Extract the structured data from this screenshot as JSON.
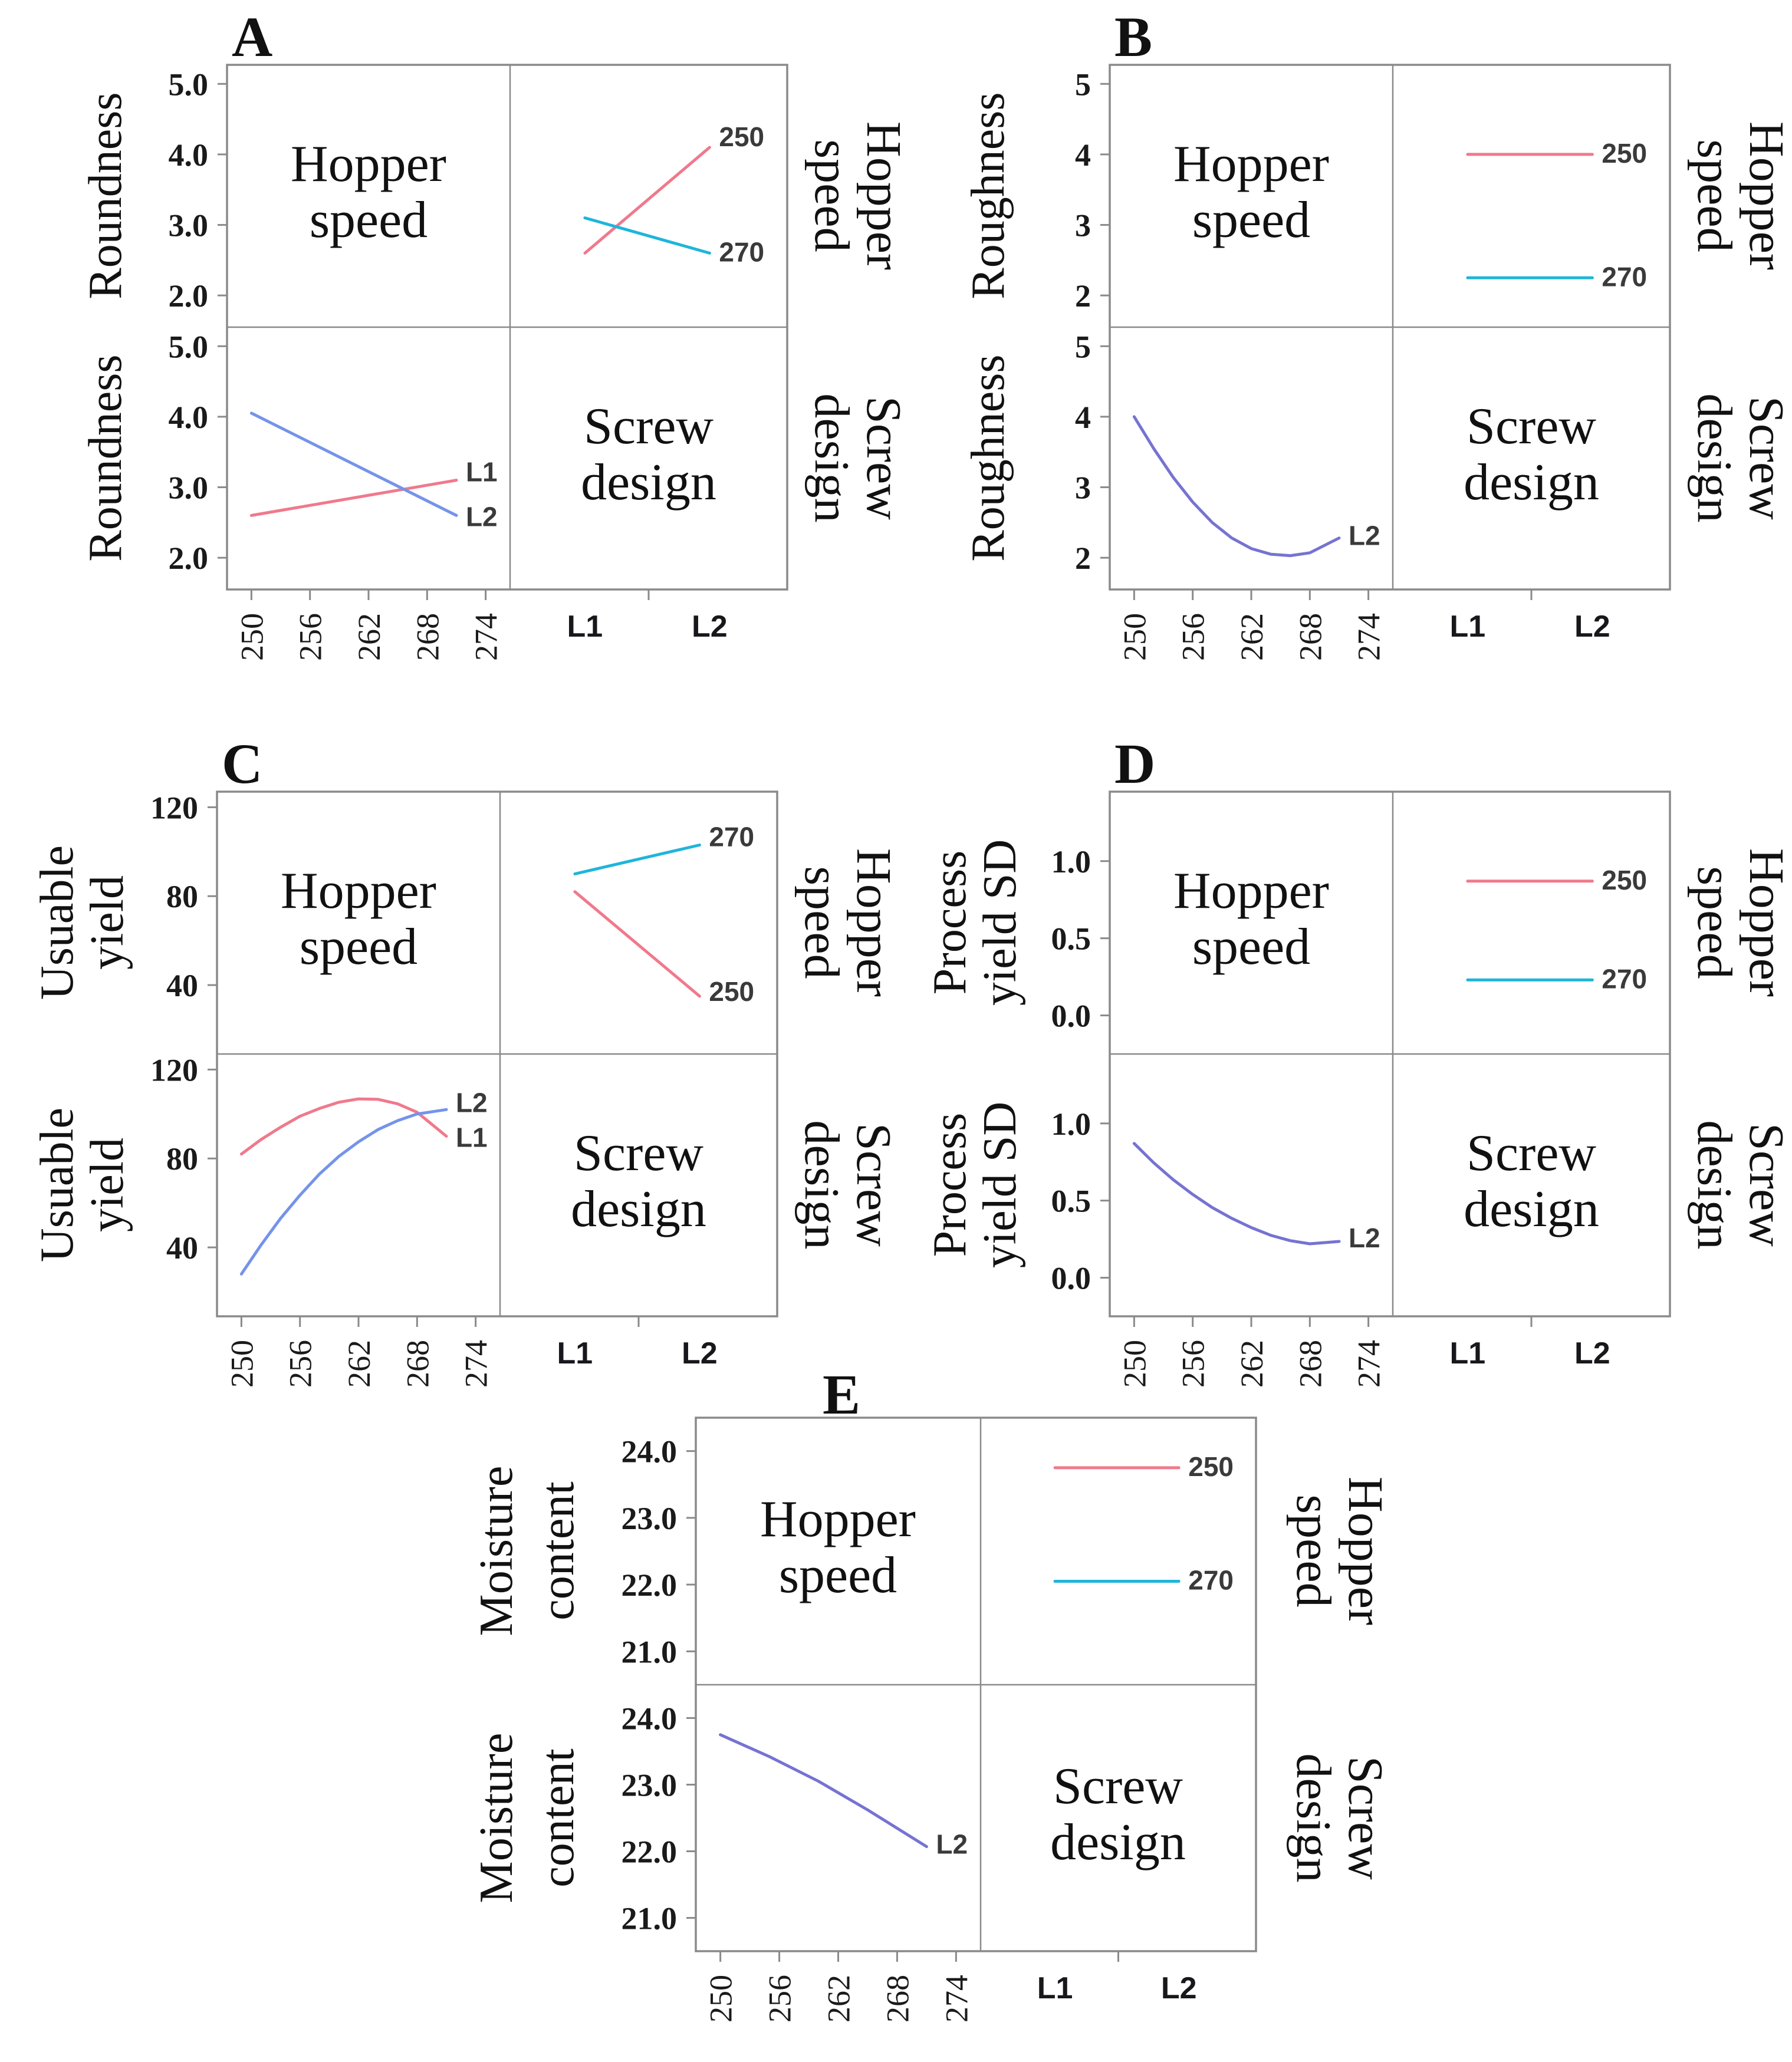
{
  "page": {
    "background": "#ffffff"
  },
  "colors": {
    "pink": "#f0798c",
    "cyan": "#1fb5da",
    "blue": "#7593e9",
    "purple": "#7673d2",
    "series_label": "#3a3a3a",
    "axis": "#8a8a8a",
    "text": "#111111"
  },
  "chart_data": {
    "type": "line",
    "figure": "interaction-plot-matrix",
    "shared": {
      "hopper_lines": [
        "Hopper",
        "speed"
      ],
      "screw_lines": [
        "Screw",
        "design"
      ],
      "hopper_name": "Hopper speed",
      "screw_name": "Screw design",
      "cat_labels": [
        "L1",
        "L2"
      ],
      "cat_pos": [
        0.27,
        0.72
      ],
      "xticks": {
        "labels": [
          "250",
          "256",
          "262",
          "268",
          "274"
        ],
        "values": [
          250,
          256,
          262,
          268,
          274
        ]
      },
      "xlim": [
        247.5,
        276.5
      ]
    },
    "panels": {
      "A": {
        "letter": "A",
        "response": "Roundness",
        "ylabel_lines": [
          "Roundness"
        ],
        "yticks": {
          "labels": [
            "5.0",
            "4.0",
            "3.0",
            "2.0"
          ],
          "values": [
            5,
            4,
            3,
            2
          ]
        },
        "ylim": [
          1.55,
          5.27
        ],
        "cells": {
          "top_right": {
            "series": [
              {
                "label": "250",
                "color": "pink",
                "xtype": "cat",
                "x": [
                  0,
                  1
                ],
                "y": [
                  2.6,
                  4.1
                ],
                "label_dy": -2
              },
              {
                "label": "270",
                "color": "cyan",
                "xtype": "cat",
                "x": [
                  0,
                  1
                ],
                "y": [
                  3.1,
                  2.6
                ],
                "label_dy": 14
              }
            ]
          },
          "bottom_left": {
            "series": [
              {
                "label": "L1",
                "color": "pink",
                "x": [
                  250,
                  271
                ],
                "y": [
                  2.6,
                  3.1
                ],
                "label_dy": 2
              },
              {
                "label": "L2",
                "color": "blue",
                "x": [
                  250,
                  271
                ],
                "y": [
                  4.05,
                  2.6
                ],
                "label_dy": 18
              }
            ]
          }
        }
      },
      "B": {
        "letter": "B",
        "response": "Roughness",
        "ylabel_lines": [
          "Roughness"
        ],
        "yticks": {
          "labels": [
            "5",
            "4",
            "3",
            "2"
          ],
          "values": [
            5,
            4,
            3,
            2
          ]
        },
        "ylim": [
          1.55,
          5.27
        ],
        "cells": {
          "top_right": {
            "series": [
              {
                "label": "250",
                "color": "pink",
                "xtype": "cat",
                "x": [
                  0,
                  1
                ],
                "y": [
                  4.0,
                  4.0
                ],
                "label_dy": 14
              },
              {
                "label": "270",
                "color": "cyan",
                "xtype": "cat",
                "x": [
                  0,
                  1
                ],
                "y": [
                  2.25,
                  2.25
                ],
                "label_dy": 14
              }
            ]
          },
          "bottom_left": {
            "series": [
              {
                "label": "L2",
                "color": "purple",
                "x": [
                  250,
                  252,
                  254,
                  256,
                  258,
                  260,
                  262,
                  264,
                  266,
                  268,
                  271
                ],
                "y": [
                  4.0,
                  3.55,
                  3.14,
                  2.79,
                  2.5,
                  2.28,
                  2.13,
                  2.05,
                  2.03,
                  2.07,
                  2.28
                ],
                "label_dy": 12
              }
            ]
          }
        }
      },
      "C": {
        "letter": "C",
        "response": "Usuable yield",
        "ylabel_lines": [
          "Usuable",
          "yield"
        ],
        "yticks": {
          "labels": [
            "120",
            "80",
            "40"
          ],
          "values": [
            120,
            80,
            40
          ]
        },
        "ylim": [
          9,
          127
        ],
        "cells": {
          "top_right": {
            "series": [
              {
                "label": "270",
                "color": "cyan",
                "xtype": "cat",
                "x": [
                  0,
                  1
                ],
                "y": [
                  90,
                  103
                ],
                "label_dy": 2
              },
              {
                "label": "250",
                "color": "pink",
                "xtype": "cat",
                "x": [
                  0,
                  1
                ],
                "y": [
                  82,
                  35
                ],
                "label_dy": 8
              }
            ]
          },
          "bottom_left": {
            "series": [
              {
                "label": "L1",
                "color": "pink",
                "x": [
                  250,
                  252,
                  254,
                  256,
                  258,
                  260,
                  262,
                  264,
                  266,
                  268,
                  271
                ],
                "y": [
                  82,
                  88.5,
                  94,
                  99,
                  102.5,
                  105.3,
                  106.8,
                  106.6,
                  104.6,
                  100.8,
                  90
                ],
                "label_dy": 18
              },
              {
                "label": "L2",
                "color": "blue",
                "x": [
                  250,
                  252,
                  254,
                  256,
                  258,
                  260,
                  262,
                  264,
                  266,
                  268,
                  271
                ],
                "y": [
                  28,
                  41,
                  53,
                  63.5,
                  73,
                  81,
                  87.5,
                  93,
                  97,
                  100,
                  102
                ],
                "label_dy": 4
              }
            ]
          }
        }
      },
      "D": {
        "letter": "D",
        "response": "Process yield SD",
        "ylabel_lines": [
          "Process",
          "yield SD"
        ],
        "yticks": {
          "labels": [
            "1.0",
            "0.5",
            "0.0"
          ],
          "values": [
            1.0,
            0.5,
            0.0
          ]
        },
        "ylim": [
          -0.25,
          1.45
        ],
        "cells": {
          "top_right": {
            "series": [
              {
                "label": "250",
                "color": "pink",
                "xtype": "cat",
                "x": [
                  0,
                  1
                ],
                "y": [
                  0.87,
                  0.87
                ],
                "label_dy": 14
              },
              {
                "label": "270",
                "color": "cyan",
                "xtype": "cat",
                "x": [
                  0,
                  1
                ],
                "y": [
                  0.23,
                  0.23
                ],
                "label_dy": 14
              }
            ]
          },
          "bottom_left": {
            "series": [
              {
                "label": "L2",
                "color": "purple",
                "x": [
                  250,
                  252,
                  254,
                  256,
                  258,
                  260,
                  262,
                  264,
                  266,
                  268,
                  271
                ],
                "y": [
                  0.87,
                  0.745,
                  0.635,
                  0.54,
                  0.455,
                  0.385,
                  0.325,
                  0.275,
                  0.24,
                  0.22,
                  0.235
                ],
                "label_dy": 10
              }
            ]
          }
        }
      },
      "E": {
        "letter": "E",
        "response": "Moisture content",
        "ylabel_lines": [
          "Moisture",
          "content"
        ],
        "yticks": {
          "labels": [
            "24.0",
            "23.0",
            "22.0",
            "21.0"
          ],
          "values": [
            24,
            23,
            22,
            21
          ]
        },
        "ylim": [
          20.5,
          24.5
        ],
        "cells": {
          "top_right": {
            "series": [
              {
                "label": "250",
                "color": "pink",
                "xtype": "cat",
                "x": [
                  0,
                  1
                ],
                "y": [
                  23.75,
                  23.75
                ],
                "label_dy": 14
              },
              {
                "label": "270",
                "color": "cyan",
                "xtype": "cat",
                "x": [
                  0,
                  1
                ],
                "y": [
                  22.05,
                  22.05
                ],
                "label_dy": 14
              }
            ]
          },
          "bottom_left": {
            "series": [
              {
                "label": "L2",
                "color": "purple",
                "x": [
                  250,
                  255,
                  260,
                  265,
                  271
                ],
                "y": [
                  23.75,
                  23.42,
                  23.05,
                  22.62,
                  22.07
                ],
                "label_dy": 12
              }
            ]
          }
        }
      }
    }
  }
}
